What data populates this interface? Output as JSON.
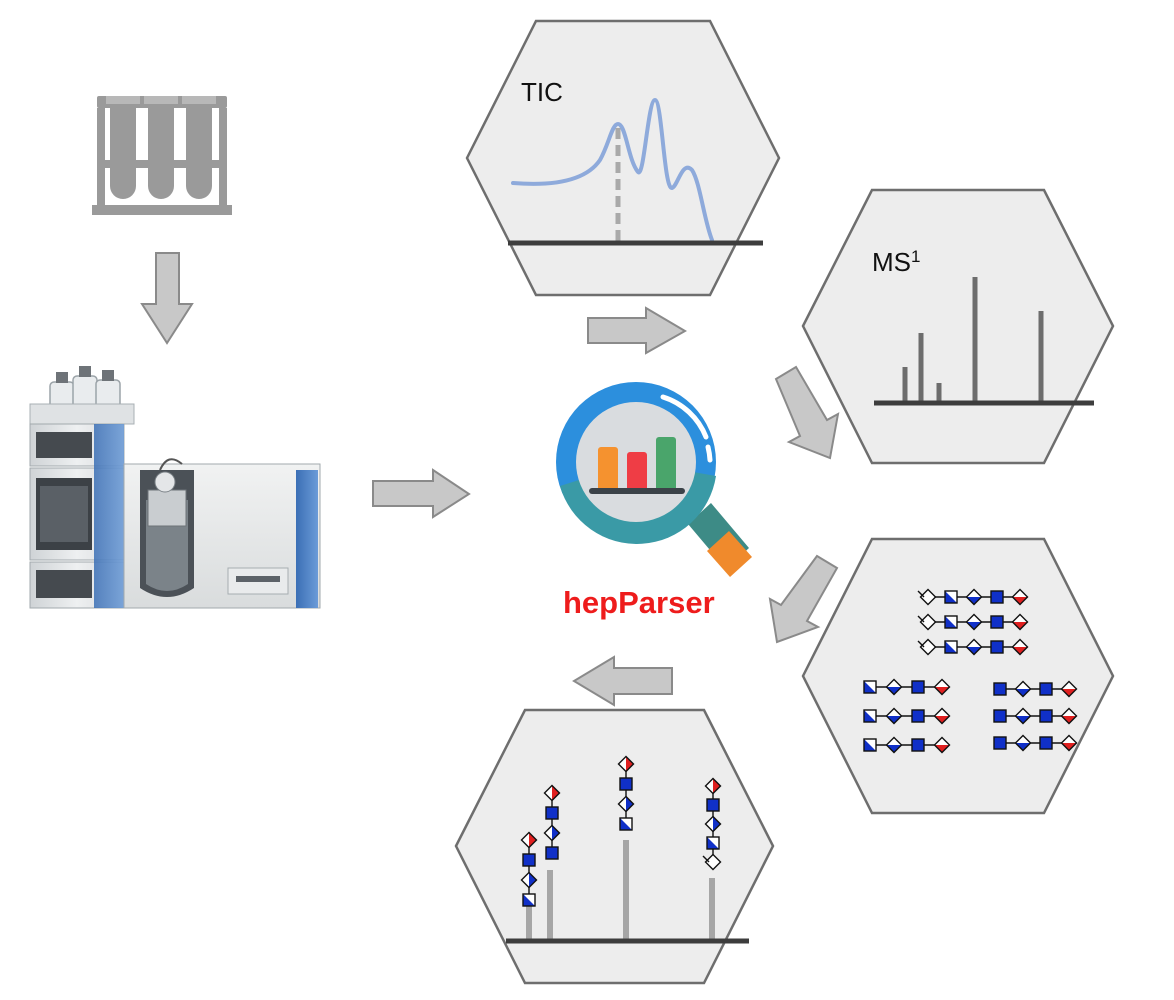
{
  "labels": {
    "tic": "TIC",
    "ms1": "MS",
    "ms1_sup": "1",
    "brand": "hepParser"
  },
  "icons": {
    "sample": "test-tubes-in-rack",
    "instrument": "lc-ms-instrument",
    "logo": "magnifying-glass-bar-chart"
  },
  "colors": {
    "brand": "#ee1c1c",
    "tic_trace": "#8eaadb",
    "glycan_blue": "#1030c8",
    "glycan_red": "#e02020",
    "logo_ring": "#2c8fdd",
    "logo_teal": "#3a9aa6",
    "bar_orange": "#f5922f",
    "bar_red": "#ef3d45",
    "bar_green": "#4aa56b"
  },
  "glycan_sequences": {
    "library_top": [
      [
        "NR",
        "HalfSq",
        "Dia",
        "Sq",
        "DiaR"
      ],
      [
        "NR",
        "HalfSq",
        "Dia",
        "Sq",
        "DiaR"
      ],
      [
        "NR",
        "HalfSq",
        "Dia",
        "Sq",
        "DiaR"
      ]
    ],
    "library_left": [
      [
        "HalfSq",
        "Dia",
        "Sq",
        "DiaR"
      ],
      [
        "HalfSq",
        "Dia",
        "Sq",
        "DiaR"
      ],
      [
        "HalfSq",
        "Dia",
        "Sq",
        "DiaR"
      ]
    ],
    "library_right": [
      [
        "Sq",
        "Dia",
        "Sq",
        "DiaR"
      ],
      [
        "Sq",
        "Dia",
        "Sq",
        "DiaR"
      ],
      [
        "Sq",
        "Dia",
        "Sq",
        "DiaR"
      ]
    ]
  }
}
